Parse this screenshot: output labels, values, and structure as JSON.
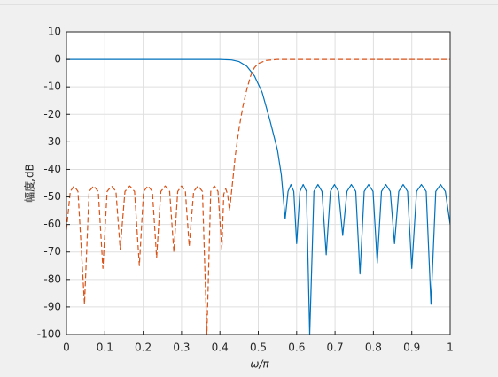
{
  "chart_data": {
    "type": "line",
    "xlabel": "ω/π",
    "ylabel": "幅度,dB",
    "xlim": [
      0,
      1
    ],
    "xticks": [
      0,
      0.1,
      0.2,
      0.3,
      0.4,
      0.5,
      0.6,
      0.7,
      0.8,
      0.9,
      1
    ],
    "ylim": [
      -100,
      10
    ],
    "yticks": [
      -100,
      -90,
      -80,
      -70,
      -60,
      -50,
      -40,
      -30,
      -20,
      -10,
      0,
      10
    ],
    "grid": true,
    "series": [
      {
        "color": "#0072BD",
        "dash": "solid",
        "x": [
          0,
          0.1,
          0.2,
          0.3,
          0.4,
          0.43,
          0.45,
          0.47,
          0.49,
          0.51,
          0.53,
          0.55,
          0.56,
          0.57,
          0.5775,
          0.585,
          0.5925,
          0.6,
          0.6085,
          0.617,
          0.6255,
          0.634,
          0.645,
          0.6555,
          0.666,
          0.677,
          0.688,
          0.6985,
          0.709,
          0.72,
          0.731,
          0.7425,
          0.754,
          0.765,
          0.776,
          0.7875,
          0.799,
          0.81,
          0.821,
          0.8325,
          0.844,
          0.855,
          0.866,
          0.8775,
          0.889,
          0.9,
          0.9125,
          0.925,
          0.9375,
          0.95,
          0.9625,
          0.975,
          0.9875,
          1.0
        ],
        "values": [
          0,
          0,
          0,
          0,
          0,
          -0.2,
          -0.8,
          -2.5,
          -6,
          -12,
          -22,
          -33,
          -42,
          -58,
          -48,
          -45.5,
          -48,
          -67,
          -48,
          -45.5,
          -48,
          -100,
          -48,
          -45.5,
          -48,
          -71,
          -48,
          -45.5,
          -48,
          -64,
          -48,
          -45.5,
          -48,
          -78,
          -48,
          -45.5,
          -48,
          -74,
          -48,
          -45.5,
          -48,
          -67,
          -48,
          -45.5,
          -48,
          -76,
          -48,
          -45.5,
          -48,
          -89,
          -48,
          -45.5,
          -48,
          -60
        ]
      },
      {
        "color": "#D95319",
        "dash": "dashed",
        "x": [
          0,
          0.01,
          0.02,
          0.03,
          0.047,
          0.059,
          0.071,
          0.083,
          0.095,
          0.106,
          0.1175,
          0.129,
          0.14,
          0.1525,
          0.165,
          0.1775,
          0.19,
          0.201,
          0.2125,
          0.224,
          0.235,
          0.246,
          0.2575,
          0.269,
          0.28,
          0.29,
          0.3,
          0.31,
          0.32,
          0.3315,
          0.343,
          0.3545,
          0.366,
          0.376,
          0.3855,
          0.395,
          0.405,
          0.41,
          0.415,
          0.42,
          0.425,
          0.435,
          0.44,
          0.45,
          0.46,
          0.47,
          0.48,
          0.49,
          0.5,
          0.52,
          0.55,
          0.7,
          1
        ],
        "values": [
          -62,
          -48,
          -46,
          -48,
          -89,
          -48,
          -46,
          -48,
          -76,
          -48,
          -46,
          -48,
          -69,
          -48,
          -46,
          -48,
          -75,
          -48,
          -46,
          -48,
          -72,
          -48,
          -46,
          -48,
          -70,
          -48,
          -46,
          -48,
          -68,
          -48,
          -46,
          -48,
          -100,
          -48,
          -46,
          -48,
          -69,
          -49,
          -47,
          -49,
          -55,
          -42,
          -35,
          -25,
          -17,
          -11,
          -6,
          -3,
          -1.5,
          -0.4,
          0,
          0,
          0
        ]
      }
    ]
  }
}
